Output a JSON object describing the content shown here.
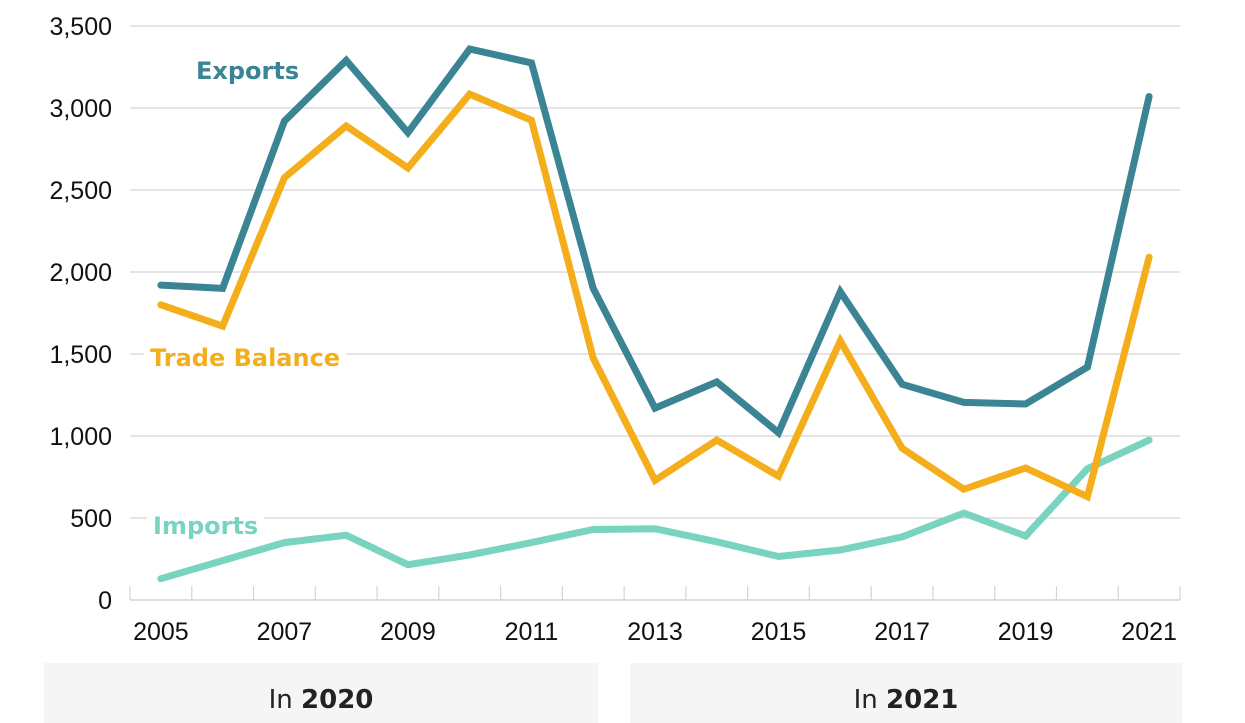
{
  "chart_data": {
    "type": "line",
    "title": "",
    "xlabel": "",
    "ylabel": "",
    "x": [
      2005,
      2006,
      2007,
      2008,
      2009,
      2010,
      2011,
      2012,
      2013,
      2014,
      2015,
      2016,
      2017,
      2018,
      2019,
      2020,
      2021
    ],
    "xtick_labels": [
      "2005",
      "2007",
      "2009",
      "2011",
      "2013",
      "2015",
      "2017",
      "2019",
      "2021"
    ],
    "ylim": [
      0,
      3500
    ],
    "yticks": [
      0,
      500,
      1000,
      1500,
      2000,
      2500,
      3000,
      3500
    ],
    "ytick_labels": [
      "0",
      "500",
      "1,000",
      "1,500",
      "2,000",
      "2,500",
      "3,000",
      "3,500"
    ],
    "grid": true,
    "legend": "inline-labels",
    "series": [
      {
        "name": "Exports",
        "color": "#3a8494",
        "values": [
          1920,
          1900,
          2920,
          3290,
          2850,
          3360,
          3275,
          1900,
          1170,
          1330,
          1020,
          1880,
          1315,
          1205,
          1195,
          1420,
          3070
        ]
      },
      {
        "name": "Trade Balance",
        "color": "#f5ae1b",
        "values": [
          1800,
          1670,
          2575,
          2890,
          2635,
          3085,
          2925,
          1475,
          730,
          975,
          755,
          1580,
          925,
          675,
          805,
          630,
          2090
        ]
      },
      {
        "name": "Imports",
        "color": "#78d3bf",
        "values": [
          130,
          240,
          350,
          395,
          215,
          275,
          350,
          430,
          435,
          355,
          265,
          305,
          385,
          530,
          390,
          800,
          975
        ]
      }
    ]
  },
  "panels": [
    {
      "prefix": "In ",
      "year": "2020"
    },
    {
      "prefix": "In ",
      "year": "2021"
    }
  ]
}
